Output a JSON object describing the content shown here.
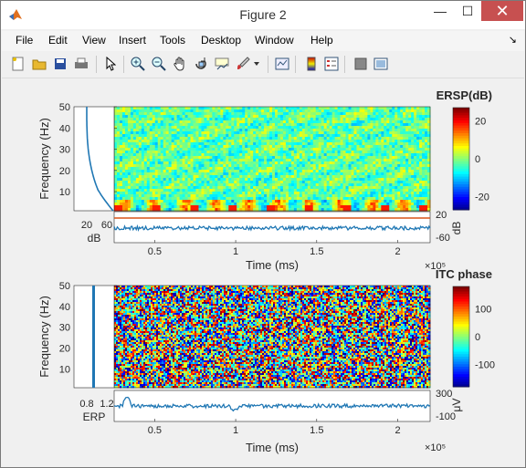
{
  "window": {
    "title": "Figure 2"
  },
  "menu": [
    "File",
    "Edit",
    "View",
    "Insert",
    "Tools",
    "Desktop",
    "Window",
    "Help"
  ],
  "menu_dock": "↘",
  "toolbar_icons": [
    "new-figure-icon",
    "open-file-icon",
    "save-icon",
    "print-icon",
    "pointer-icon",
    "zoom-in-icon",
    "zoom-out-icon",
    "pan-icon",
    "rotate-3d-icon",
    "data-cursor-icon",
    "brush-icon",
    "dropdown-arrow-icon",
    "link-plot-icon",
    "colorbar-icon",
    "legend-icon",
    "hide-plot-tools-icon",
    "show-plot-tools-icon"
  ],
  "colors": {
    "trace": "#1f77b4",
    "orange": "#d95319",
    "bg": "#f0f0f0"
  },
  "chart_data": [
    {
      "type": "heatmap",
      "title": "ERSP(dB)",
      "ylabel": "Frequency (Hz)",
      "xlabel": "Time (ms)",
      "x_exponent": "×10⁵",
      "ylim": [
        1,
        50
      ],
      "yticks": [
        "10",
        "20",
        "30",
        "40",
        "50"
      ],
      "xticks": [
        "0.5",
        "1",
        "1.5",
        "2"
      ],
      "xtick_values": [
        0.5,
        1,
        1.5,
        2
      ],
      "xlim": [
        0.25,
        2.2
      ],
      "colorbar": {
        "ticks": [
          "20",
          "0",
          "-20"
        ],
        "tick_values": [
          20,
          0,
          -20
        ],
        "range": [
          -27,
          27
        ],
        "label": "dB"
      },
      "left_panel": {
        "xlabel": "dB",
        "xticks": [
          "20",
          "60"
        ],
        "type": "line"
      },
      "bottom_panel": {
        "yticks": [
          "20",
          "-60"
        ],
        "type": "line"
      }
    },
    {
      "type": "heatmap",
      "title": "ITC phase",
      "ylabel": "Frequency (Hz)",
      "xlabel": "Time (ms)",
      "x_exponent": "×10⁵",
      "ylim": [
        1,
        50
      ],
      "yticks": [
        "10",
        "20",
        "30",
        "40",
        "50"
      ],
      "xticks": [
        "0.5",
        "1",
        "1.5",
        "2"
      ],
      "xtick_values": [
        0.5,
        1,
        1.5,
        2
      ],
      "xlim": [
        0.25,
        2.2
      ],
      "colorbar": {
        "ticks": [
          "100",
          "0",
          "-100"
        ],
        "tick_values": [
          100,
          0,
          -100
        ],
        "range": [
          -180,
          180
        ],
        "label": "μV"
      },
      "left_panel": {
        "xlabel": "ERP",
        "xticks": [
          "0.8",
          "1.2"
        ],
        "type": "line"
      },
      "bottom_panel": {
        "yticks": [
          "300",
          "-100"
        ],
        "type": "line"
      }
    }
  ]
}
